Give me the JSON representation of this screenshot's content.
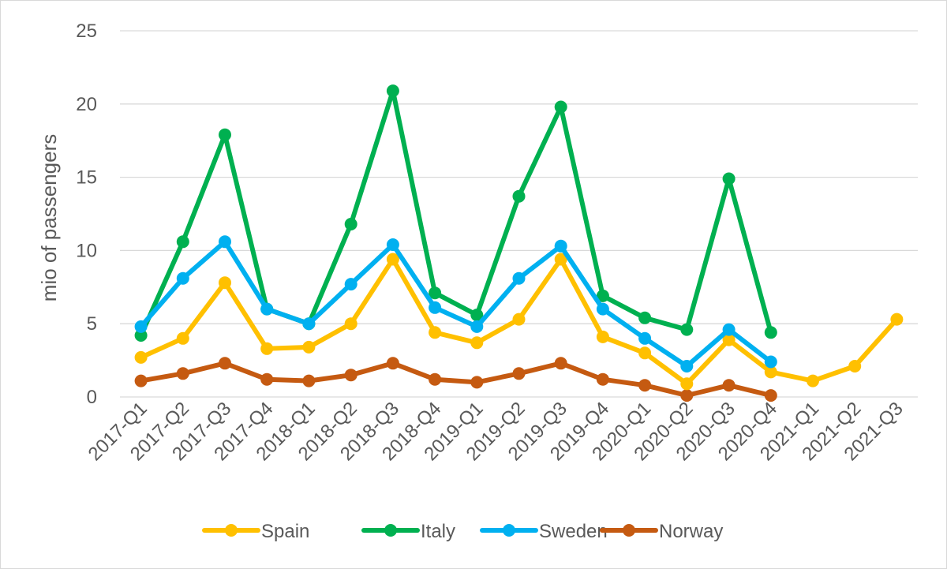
{
  "chart_data": {
    "type": "line",
    "title": "",
    "xlabel": "",
    "ylabel": "mio of passengers",
    "ylim": [
      0,
      25
    ],
    "yticks": [
      0,
      5,
      10,
      15,
      20,
      25
    ],
    "grid": true,
    "legend_position": "bottom",
    "categories": [
      "2017-Q1",
      "2017-Q2",
      "2017-Q3",
      "2017-Q4",
      "2018-Q1",
      "2018-Q2",
      "2018-Q3",
      "2018-Q4",
      "2019-Q1",
      "2019-Q2",
      "2019-Q3",
      "2019-Q4",
      "2020-Q1",
      "2020-Q2",
      "2020-Q3",
      "2020-Q4",
      "2021-Q1",
      "2021-Q2",
      "2021-Q3"
    ],
    "series": [
      {
        "name": "Spain",
        "color": "#FFC000",
        "values": [
          2.7,
          4.0,
          7.8,
          3.3,
          3.4,
          5.0,
          9.4,
          4.4,
          3.7,
          5.3,
          9.4,
          4.1,
          3.0,
          0.9,
          3.9,
          1.7,
          1.1,
          2.1,
          5.3
        ]
      },
      {
        "name": "Italy",
        "color": "#00B050",
        "values": [
          4.2,
          10.6,
          17.9,
          6.0,
          5.0,
          11.8,
          20.9,
          7.1,
          5.6,
          13.7,
          19.8,
          6.9,
          5.4,
          4.6,
          14.9,
          4.4,
          null,
          null,
          null
        ]
      },
      {
        "name": "Sweden",
        "color": "#00B0F0",
        "values": [
          4.8,
          8.1,
          10.6,
          6.0,
          5.0,
          7.7,
          10.4,
          6.1,
          4.8,
          8.1,
          10.3,
          6.0,
          4.0,
          2.1,
          4.6,
          2.4,
          null,
          null,
          null
        ]
      },
      {
        "name": "Norway",
        "color": "#C55A11",
        "values": [
          1.1,
          1.6,
          2.3,
          1.2,
          1.1,
          1.5,
          2.3,
          1.2,
          1.0,
          1.6,
          2.3,
          1.2,
          0.8,
          0.1,
          0.8,
          0.1,
          null,
          null,
          null
        ]
      }
    ]
  }
}
